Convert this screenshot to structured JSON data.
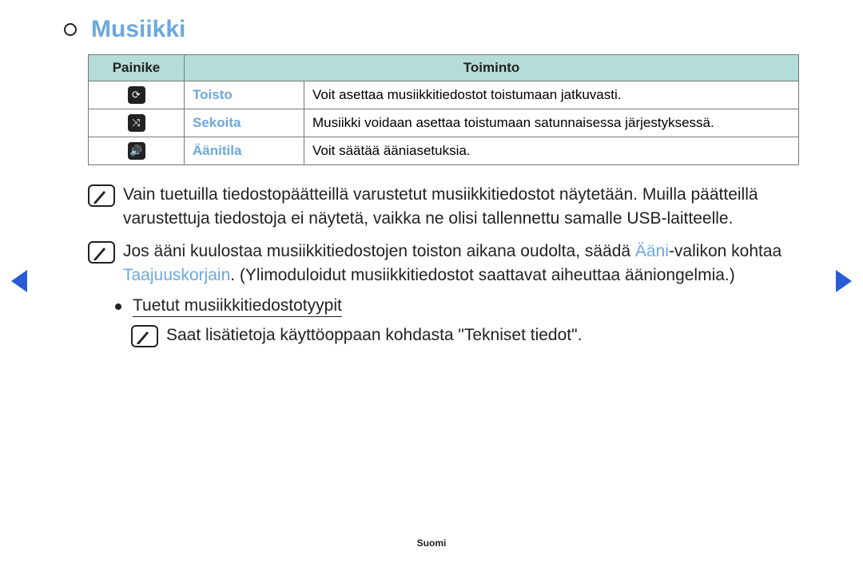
{
  "colors": {
    "accent_blue": "#6ca8e0",
    "header_bg": "#b4dcd9",
    "arrow_blue": "#2a5bd7",
    "text": "#222222",
    "border": "#777777",
    "background": "#ffffff"
  },
  "title": "Musiikki",
  "table": {
    "headers": {
      "button": "Painike",
      "function": "Toiminto"
    },
    "rows": [
      {
        "icon": "⟳",
        "name": "Toisto",
        "desc": "Voit asettaa musiikkitiedostot toistumaan jatkuvasti."
      },
      {
        "icon": "⤨",
        "name": "Sekoita",
        "desc": "Musiikki voidaan asettaa toistumaan satunnaisessa järjestyksessä."
      },
      {
        "icon": "🔊",
        "name": "Äänitila",
        "desc": "Voit säätää ääniasetuksia."
      }
    ]
  },
  "notes": [
    {
      "segments": [
        {
          "t": "Vain tuetuilla tiedostopäätteillä varustetut musiikkitiedostot näytetään. Muilla päätteillä varustettuja tiedostoja ei näytetä, vaikka ne olisi tallennettu samalle USB-laitteelle."
        }
      ]
    },
    {
      "segments": [
        {
          "t": "Jos ääni kuulostaa musiikkitiedostojen toiston aikana oudolta, säädä "
        },
        {
          "t": "Ääni",
          "hl": true
        },
        {
          "t": "-valikon kohtaa "
        },
        {
          "t": "Taajuuskorjain",
          "hl": true
        },
        {
          "t": ". (Ylimoduloidut musiikkitiedostot saattavat aiheuttaa ääniongelmia.)"
        }
      ]
    }
  ],
  "sub": {
    "heading": "Tuetut musiikkitiedostotyypit",
    "note": "Saat lisätietoja käyttöoppaan kohdasta \"Tekniset tiedot\"."
  },
  "footer": "Suomi"
}
